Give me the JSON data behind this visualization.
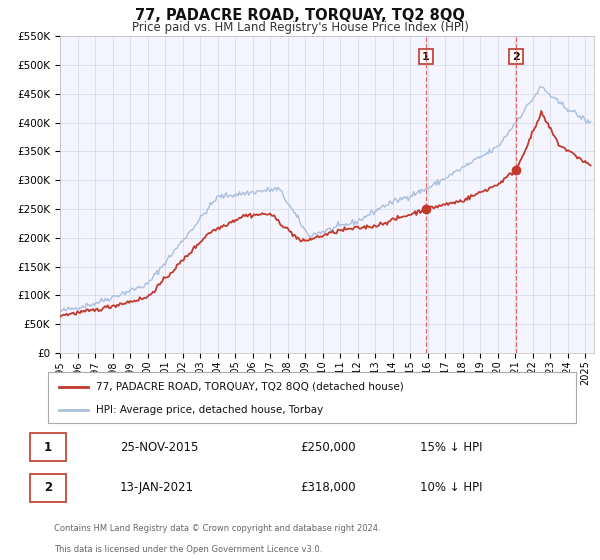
{
  "title": "77, PADACRE ROAD, TORQUAY, TQ2 8QQ",
  "subtitle": "Price paid vs. HM Land Registry's House Price Index (HPI)",
  "ylim": [
    0,
    550000
  ],
  "yticks": [
    0,
    50000,
    100000,
    150000,
    200000,
    250000,
    300000,
    350000,
    400000,
    450000,
    500000,
    550000
  ],
  "ytick_labels": [
    "£0",
    "£50K",
    "£100K",
    "£150K",
    "£200K",
    "£250K",
    "£300K",
    "£350K",
    "£400K",
    "£450K",
    "£500K",
    "£550K"
  ],
  "hpi_color": "#aabfdd",
  "price_color": "#c0392b",
  "marker_color": "#c0392b",
  "vline_color": "#e05050",
  "annotation_box_color": "#ffffff",
  "annotation_box_edge": "#c0392b",
  "grid_color": "#d0d8e8",
  "background_color": "#f5f5ff",
  "legend_label_price": "77, PADACRE ROAD, TORQUAY, TQ2 8QQ (detached house)",
  "legend_label_hpi": "HPI: Average price, detached house, Torbay",
  "sale1_date_num": 2015.9,
  "sale1_price": 250000,
  "sale2_date_num": 2021.05,
  "sale2_price": 318000,
  "footer_line1": "Contains HM Land Registry data © Crown copyright and database right 2024.",
  "footer_line2": "This data is licensed under the Open Government Licence v3.0.",
  "table_row1": [
    "1",
    "25-NOV-2015",
    "£250,000",
    "15% ↓ HPI"
  ],
  "table_row2": [
    "2",
    "13-JAN-2021",
    "£318,000",
    "10% ↓ HPI"
  ]
}
